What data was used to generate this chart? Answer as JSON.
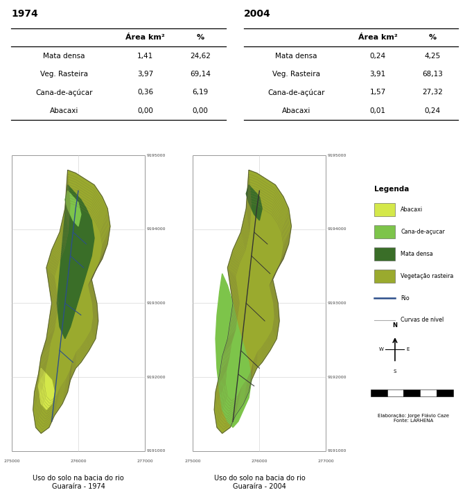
{
  "title_1974": "1974",
  "title_2004": "2004",
  "col_headers": [
    "",
    "Área km²",
    "%"
  ],
  "rows_1974": [
    [
      "Mata densa",
      "1,41",
      "24,62"
    ],
    [
      "Veg. Rasteira",
      "3,97",
      "69,14"
    ],
    [
      "Cana-de-açúcar",
      "0,36",
      "6,19"
    ],
    [
      "Abacaxi",
      "0,00",
      "0,00"
    ]
  ],
  "rows_2004": [
    [
      "Mata densa",
      "0,24",
      "4,25"
    ],
    [
      "Veg. Rasteira",
      "3,91",
      "68,13"
    ],
    [
      "Cana-de-açúcar",
      "1,57",
      "27,32"
    ],
    [
      "Abacaxi",
      "0,01",
      "0,24"
    ]
  ],
  "caption_1974": "Uso do solo na bacia do rio\nGuaraíra - 1974",
  "caption_2004": "Uso do solo na bacia do rio\nGuaraíra - 2004",
  "legend_title": "Legenda",
  "legend_items": [
    {
      "label": "Abacaxi",
      "color": "#d4e84a"
    },
    {
      "label": "Cana-de-açucar",
      "color": "#7dc44a"
    },
    {
      "label": "Mata densa",
      "color": "#3a6e28"
    },
    {
      "label": "Vegetação rasteira",
      "color": "#9aaa2e"
    }
  ],
  "legend_lines": [
    {
      "label": "Rio",
      "color": "#2c4f8a",
      "style": "-"
    },
    {
      "label": "Curvas de nível",
      "color": "#888888",
      "style": "-"
    }
  ],
  "elaboracao": "Elaboração: Jorge Flávio Caze\nFonte: LARHENA",
  "bg_color": "#ffffff",
  "veg_rasteira_color": "#9aaa2e",
  "mata_densa_color": "#3a6e28",
  "cana_color": "#7dc44a",
  "abacaxi_color": "#d4e84a",
  "river_color": "#2c4f8a",
  "contour_color": "#7a7a3a",
  "map_border_color": "#555555",
  "grid_color": "#cccccc",
  "tick_label_color": "#444444"
}
